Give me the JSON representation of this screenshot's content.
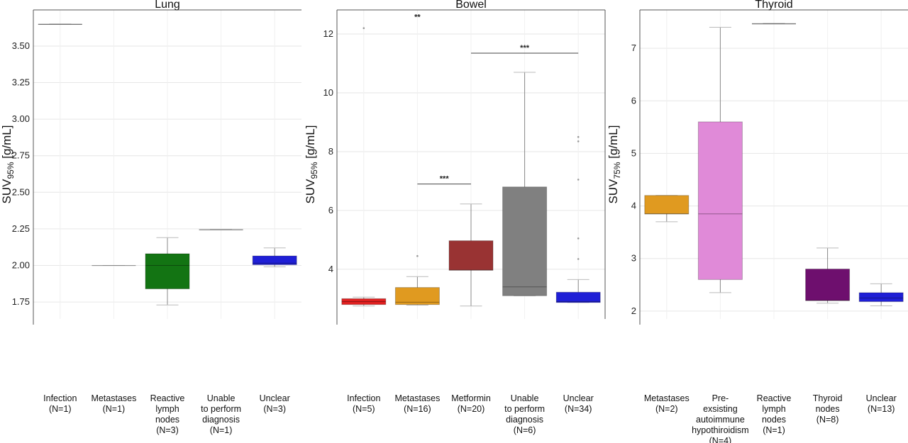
{
  "chart_data": [
    {
      "type": "box",
      "title": "Lung",
      "ylabel": {
        "main": "SUV",
        "sub": "95%",
        "unit": " [g/mL]"
      },
      "ylim": [
        1.634,
        3.747
      ],
      "yticks": [
        1.75,
        2.0,
        2.25,
        2.5,
        2.75,
        3.0,
        3.25,
        3.5
      ],
      "ytick_labels": [
        "1.75",
        "2.00",
        "2.25",
        "2.50",
        "2.75",
        "3.00",
        "3.25",
        "3.50"
      ],
      "grid": true,
      "categories": [
        {
          "label": [
            "Infection",
            "(N=1)"
          ],
          "color": "#888888",
          "q1": 3.65,
          "median": 3.65,
          "q3": 3.65,
          "wlo": 3.65,
          "whi": 3.65
        },
        {
          "label": [
            "Metastases",
            "(N=1)"
          ],
          "color": "#dddddd",
          "q1": 2.0,
          "median": 2.0,
          "q3": 2.0,
          "wlo": 2.0,
          "whi": 2.0
        },
        {
          "label": [
            "Reactive",
            "lymph",
            "nodes",
            "(N=3)"
          ],
          "color": "#137413",
          "q1": 1.84,
          "median": 2.0,
          "q3": 2.08,
          "wlo": 1.73,
          "whi": 2.19
        },
        {
          "label": [
            "Unable",
            "to perform",
            "diagnosis",
            "(N=1)"
          ],
          "color": "#aaaaaa",
          "q1": 2.245,
          "median": 2.245,
          "q3": 2.245,
          "wlo": 2.245,
          "whi": 2.245
        },
        {
          "label": [
            "Unclear",
            "(N=3)"
          ],
          "color": "#1f1fd6",
          "q1": 2.005,
          "median": 2.015,
          "q3": 2.065,
          "wlo": 1.99,
          "whi": 2.12
        }
      ],
      "outliers": [],
      "significance": []
    },
    {
      "type": "box",
      "title": "Bowel",
      "ylabel": {
        "main": "SUV",
        "sub": "95%",
        "unit": " [g/mL]"
      },
      "ylim": [
        2.31,
        12.82
      ],
      "yticks": [
        4,
        6,
        8,
        10,
        12
      ],
      "ytick_labels": [
        "4",
        "6",
        "8",
        "10",
        "12"
      ],
      "grid": true,
      "categories": [
        {
          "label": [
            "Infection",
            "(N=5)"
          ],
          "color": "#e02020",
          "q1": 2.8,
          "median": 2.9,
          "q3": 3.0,
          "wlo": 2.75,
          "whi": 3.05
        },
        {
          "label": [
            "Metastases",
            "(N=16)"
          ],
          "color": "#e09a20",
          "q1": 2.8,
          "median": 2.88,
          "q3": 3.38,
          "wlo": 2.78,
          "whi": 3.75
        },
        {
          "label": [
            "Metformin",
            "(N=20)"
          ],
          "color": "#993333",
          "q1": 3.97,
          "median": 3.97,
          "q3": 4.97,
          "wlo": 2.75,
          "whi": 6.22
        },
        {
          "label": [
            "Unable",
            "to perform",
            "diagnosis",
            "(N=6)"
          ],
          "color": "#808080",
          "q1": 3.1,
          "median": 3.4,
          "q3": 6.8,
          "wlo": 3.1,
          "whi": 10.7
        },
        {
          "label": [
            "Unclear",
            "(N=34)"
          ],
          "color": "#1f1fd6",
          "q1": 2.87,
          "median": 2.9,
          "q3": 3.22,
          "wlo": 2.87,
          "whi": 3.65
        }
      ],
      "outliers": [
        {
          "cat": 0,
          "y": 12.2
        },
        {
          "cat": 1,
          "y": 4.45
        },
        {
          "cat": 4,
          "y": 4.35
        },
        {
          "cat": 4,
          "y": 5.05
        },
        {
          "cat": 4,
          "y": 7.05
        },
        {
          "cat": 4,
          "y": 8.35
        },
        {
          "cat": 4,
          "y": 8.5
        }
      ],
      "significance": [
        {
          "from": 1,
          "to": 1,
          "y": 12.4,
          "label": "**"
        },
        {
          "from": 1,
          "to": 2,
          "y": 6.9,
          "label": "***"
        },
        {
          "from": 2,
          "to": 4,
          "y": 11.35,
          "label": "***"
        }
      ]
    },
    {
      "type": "box",
      "title": "Thyroid",
      "ylabel": {
        "main": "SUV",
        "sub": "75%",
        "unit": " [g/mL]"
      },
      "ylim": [
        1.85,
        7.73
      ],
      "yticks": [
        2,
        3,
        4,
        5,
        6,
        7
      ],
      "ytick_labels": [
        "2",
        "3",
        "4",
        "5",
        "6",
        "7"
      ],
      "grid": true,
      "categories": [
        {
          "label": [
            "Metastases",
            "(N=2)"
          ],
          "color": "#e09a20",
          "q1": 3.85,
          "median": 3.85,
          "q3": 4.2,
          "wlo": 3.7,
          "whi": 4.2
        },
        {
          "label": [
            "Pre-",
            "exsisting",
            "autoimmune",
            "hypothiroidism",
            "(N=4)"
          ],
          "color": "#e08ad8",
          "q1": 2.6,
          "median": 3.85,
          "q3": 5.6,
          "wlo": 2.35,
          "whi": 7.4
        },
        {
          "label": [
            "Reactive",
            "lymph",
            "nodes",
            "(N=1)"
          ],
          "color": "#888888",
          "q1": 7.47,
          "median": 7.47,
          "q3": 7.47,
          "wlo": 7.47,
          "whi": 7.47
        },
        {
          "label": [
            "Thyroid",
            "nodes",
            "(N=8)"
          ],
          "color": "#6e0f6e",
          "q1": 2.2,
          "median": 2.2,
          "q3": 2.8,
          "wlo": 2.15,
          "whi": 3.2
        },
        {
          "label": [
            "Unclear",
            "(N=13)"
          ],
          "color": "#1f1fd6",
          "q1": 2.18,
          "median": 2.25,
          "q3": 2.35,
          "wlo": 2.1,
          "whi": 2.52
        }
      ],
      "outliers": [],
      "significance": []
    }
  ]
}
